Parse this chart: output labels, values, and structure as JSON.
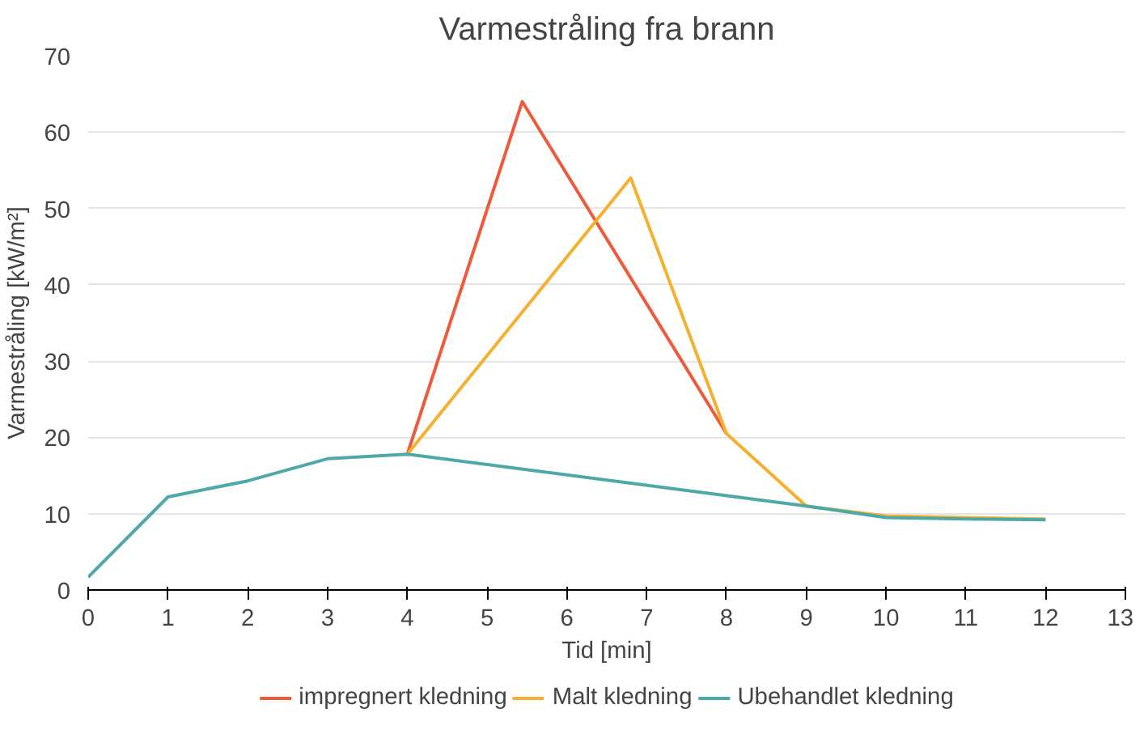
{
  "chart_data": {
    "type": "line",
    "title": "Varmestråling fra brann",
    "xlabel": "Tid [min]",
    "ylabel": "Varmestråling [kW/m²]",
    "xlim": [
      0,
      13
    ],
    "xticks": [
      0,
      1,
      2,
      3,
      4,
      5,
      6,
      7,
      8,
      9,
      10,
      11,
      12,
      13
    ],
    "ylim": [
      0,
      70
    ],
    "yticks": [
      0,
      10,
      20,
      30,
      40,
      50,
      60,
      70
    ],
    "grid": "y",
    "legend": "bottom",
    "marker": "none",
    "line_style": "solid",
    "series": [
      {
        "name": "impregnert kledning",
        "color": "#ee5a3c",
        "x": [
          4,
          5.44,
          8
        ],
        "values": [
          17.8,
          64,
          20.5
        ]
      },
      {
        "name": "Malt kledning",
        "color": "#f6b030",
        "x": [
          4,
          6.8,
          8,
          9,
          10,
          11,
          12
        ],
        "values": [
          17.8,
          54,
          20.5,
          11,
          9.7,
          9.5,
          9.3
        ]
      },
      {
        "name": "Ubehandlet kledning",
        "color": "#4ea9a6",
        "x": [
          0,
          1,
          2,
          3,
          4,
          9,
          10,
          11,
          12
        ],
        "values": [
          1.7,
          12.2,
          14.3,
          17.2,
          17.8,
          11,
          9.5,
          9.3,
          9.2
        ]
      }
    ]
  }
}
